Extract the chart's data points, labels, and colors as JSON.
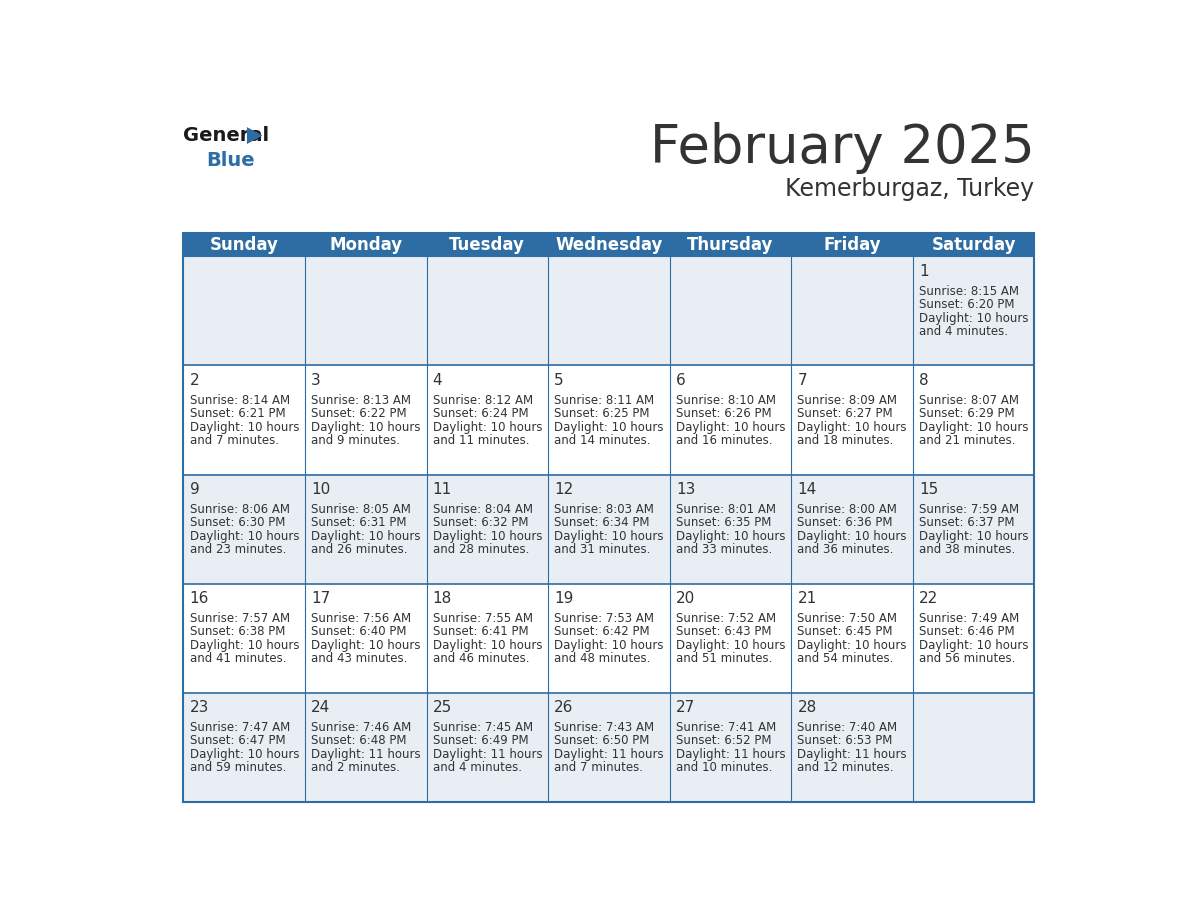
{
  "title": "February 2025",
  "subtitle": "Kemerburgaz, Turkey",
  "header_color": "#2d6da3",
  "header_text_color": "#ffffff",
  "background_color": "#ffffff",
  "cell_bg_light": "#e8eef4",
  "cell_bg_white": "#ffffff",
  "days_of_week": [
    "Sunday",
    "Monday",
    "Tuesday",
    "Wednesday",
    "Thursday",
    "Friday",
    "Saturday"
  ],
  "title_fontsize": 38,
  "subtitle_fontsize": 17,
  "header_fontsize": 12,
  "cell_fontsize": 8.5,
  "day_number_fontsize": 11,
  "grid_line_color": "#2d6da3",
  "text_color": "#333333",
  "calendar": [
    [
      null,
      null,
      null,
      null,
      null,
      null,
      {
        "day": 1,
        "sunrise": "8:15 AM",
        "sunset": "6:20 PM",
        "daylight": "10 hours and 4 minutes."
      }
    ],
    [
      {
        "day": 2,
        "sunrise": "8:14 AM",
        "sunset": "6:21 PM",
        "daylight": "10 hours and 7 minutes."
      },
      {
        "day": 3,
        "sunrise": "8:13 AM",
        "sunset": "6:22 PM",
        "daylight": "10 hours and 9 minutes."
      },
      {
        "day": 4,
        "sunrise": "8:12 AM",
        "sunset": "6:24 PM",
        "daylight": "10 hours and 11 minutes."
      },
      {
        "day": 5,
        "sunrise": "8:11 AM",
        "sunset": "6:25 PM",
        "daylight": "10 hours and 14 minutes."
      },
      {
        "day": 6,
        "sunrise": "8:10 AM",
        "sunset": "6:26 PM",
        "daylight": "10 hours and 16 minutes."
      },
      {
        "day": 7,
        "sunrise": "8:09 AM",
        "sunset": "6:27 PM",
        "daylight": "10 hours and 18 minutes."
      },
      {
        "day": 8,
        "sunrise": "8:07 AM",
        "sunset": "6:29 PM",
        "daylight": "10 hours and 21 minutes."
      }
    ],
    [
      {
        "day": 9,
        "sunrise": "8:06 AM",
        "sunset": "6:30 PM",
        "daylight": "10 hours and 23 minutes."
      },
      {
        "day": 10,
        "sunrise": "8:05 AM",
        "sunset": "6:31 PM",
        "daylight": "10 hours and 26 minutes."
      },
      {
        "day": 11,
        "sunrise": "8:04 AM",
        "sunset": "6:32 PM",
        "daylight": "10 hours and 28 minutes."
      },
      {
        "day": 12,
        "sunrise": "8:03 AM",
        "sunset": "6:34 PM",
        "daylight": "10 hours and 31 minutes."
      },
      {
        "day": 13,
        "sunrise": "8:01 AM",
        "sunset": "6:35 PM",
        "daylight": "10 hours and 33 minutes."
      },
      {
        "day": 14,
        "sunrise": "8:00 AM",
        "sunset": "6:36 PM",
        "daylight": "10 hours and 36 minutes."
      },
      {
        "day": 15,
        "sunrise": "7:59 AM",
        "sunset": "6:37 PM",
        "daylight": "10 hours and 38 minutes."
      }
    ],
    [
      {
        "day": 16,
        "sunrise": "7:57 AM",
        "sunset": "6:38 PM",
        "daylight": "10 hours and 41 minutes."
      },
      {
        "day": 17,
        "sunrise": "7:56 AM",
        "sunset": "6:40 PM",
        "daylight": "10 hours and 43 minutes."
      },
      {
        "day": 18,
        "sunrise": "7:55 AM",
        "sunset": "6:41 PM",
        "daylight": "10 hours and 46 minutes."
      },
      {
        "day": 19,
        "sunrise": "7:53 AM",
        "sunset": "6:42 PM",
        "daylight": "10 hours and 48 minutes."
      },
      {
        "day": 20,
        "sunrise": "7:52 AM",
        "sunset": "6:43 PM",
        "daylight": "10 hours and 51 minutes."
      },
      {
        "day": 21,
        "sunrise": "7:50 AM",
        "sunset": "6:45 PM",
        "daylight": "10 hours and 54 minutes."
      },
      {
        "day": 22,
        "sunrise": "7:49 AM",
        "sunset": "6:46 PM",
        "daylight": "10 hours and 56 minutes."
      }
    ],
    [
      {
        "day": 23,
        "sunrise": "7:47 AM",
        "sunset": "6:47 PM",
        "daylight": "10 hours and 59 minutes."
      },
      {
        "day": 24,
        "sunrise": "7:46 AM",
        "sunset": "6:48 PM",
        "daylight": "11 hours and 2 minutes."
      },
      {
        "day": 25,
        "sunrise": "7:45 AM",
        "sunset": "6:49 PM",
        "daylight": "11 hours and 4 minutes."
      },
      {
        "day": 26,
        "sunrise": "7:43 AM",
        "sunset": "6:50 PM",
        "daylight": "11 hours and 7 minutes."
      },
      {
        "day": 27,
        "sunrise": "7:41 AM",
        "sunset": "6:52 PM",
        "daylight": "11 hours and 10 minutes."
      },
      {
        "day": 28,
        "sunrise": "7:40 AM",
        "sunset": "6:53 PM",
        "daylight": "11 hours and 12 minutes."
      },
      null
    ]
  ]
}
